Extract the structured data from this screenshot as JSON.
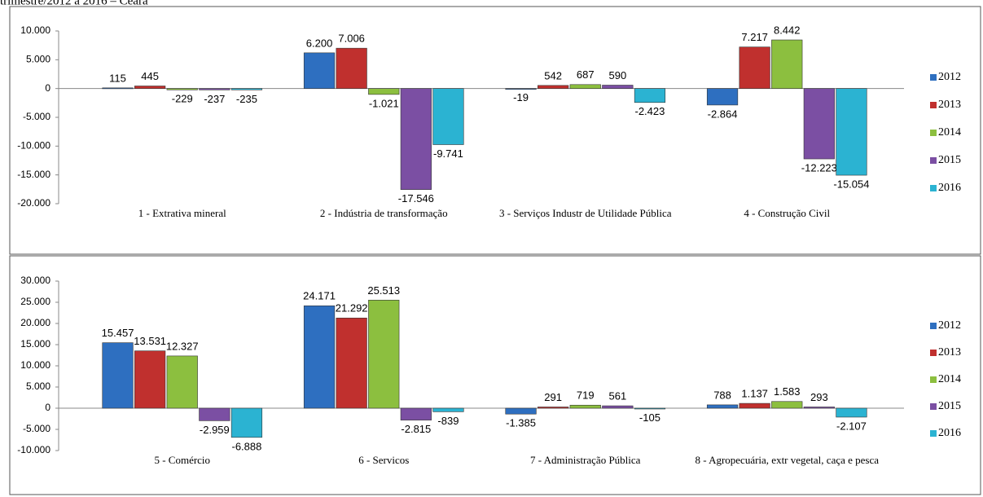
{
  "caption": "trimestre/2012 a 2016 – Ceará",
  "chart_data": [
    {
      "type": "bar",
      "categories": [
        "1 - Extrativa mineral",
        "2 - Indústria de transformação",
        "3 - Serviços Industr de Utilidade Pública",
        "4 - Construção Civil"
      ],
      "series": [
        {
          "name": "2012",
          "color": "#2e6fc0",
          "values": [
            115,
            6200,
            -19,
            -2864
          ],
          "value_labels": [
            "115",
            "6.200",
            "-19",
            "-2.864"
          ]
        },
        {
          "name": "2013",
          "color": "#c0302e",
          "values": [
            445,
            7006,
            542,
            7217
          ],
          "value_labels": [
            "445",
            "7.006",
            "542",
            "7.217"
          ]
        },
        {
          "name": "2014",
          "color": "#8cbf3f",
          "values": [
            -229,
            -1021,
            687,
            8442
          ],
          "value_labels": [
            "-229",
            "-1.021",
            "687",
            "8.442"
          ]
        },
        {
          "name": "2015",
          "color": "#7b4fa3",
          "values": [
            -237,
            -17546,
            590,
            -12223
          ],
          "value_labels": [
            "-237",
            "-17.546",
            "590",
            "-12.223"
          ]
        },
        {
          "name": "2016",
          "color": "#2bb3d2",
          "values": [
            -235,
            -9741,
            -2423,
            -15054
          ],
          "value_labels": [
            "-235",
            "-9.741",
            "-2.423",
            "-15.054"
          ]
        }
      ],
      "ylim": [
        -20000,
        10000
      ],
      "yticks": [
        {
          "value": -20000,
          "label": "-20.000"
        },
        {
          "value": -15000,
          "label": "-15.000"
        },
        {
          "value": -10000,
          "label": "-10.000"
        },
        {
          "value": -5000,
          "label": "-5.000"
        },
        0,
        {
          "value": 5000,
          "label": "5.000"
        },
        {
          "value": 10000,
          "label": "10.000"
        }
      ],
      "legend": "right"
    },
    {
      "type": "bar",
      "categories": [
        "5 - Comércio",
        "6 - Servicos",
        "7 - Administração Pública",
        "8 - Agropecuária, extr vegetal, caça e pesca"
      ],
      "series": [
        {
          "name": "2012",
          "color": "#2e6fc0",
          "values": [
            15457,
            24171,
            -1385,
            788
          ],
          "value_labels": [
            "15.457",
            "24.171",
            "-1.385",
            "788"
          ]
        },
        {
          "name": "2013",
          "color": "#c0302e",
          "values": [
            13531,
            21292,
            291,
            1137
          ],
          "value_labels": [
            "13.531",
            "21.292",
            "291",
            "1.137"
          ]
        },
        {
          "name": "2014",
          "color": "#8cbf3f",
          "values": [
            12327,
            25513,
            719,
            1583
          ],
          "value_labels": [
            "12.327",
            "25.513",
            "719",
            "1.583"
          ]
        },
        {
          "name": "2015",
          "color": "#7b4fa3",
          "values": [
            -2959,
            -2815,
            561,
            293
          ],
          "value_labels": [
            "-2.959",
            "-2.815",
            "561",
            "293"
          ]
        },
        {
          "name": "2016",
          "color": "#2bb3d2",
          "values": [
            -6888,
            -839,
            -105,
            -2107
          ],
          "value_labels": [
            "-6.888",
            "-839",
            "-105",
            "-2.107"
          ]
        }
      ],
      "ylim": [
        -10000,
        30000
      ],
      "yticks": [
        {
          "value": -10000,
          "label": "-10.000"
        },
        {
          "value": -5000,
          "label": "-5.000"
        },
        0,
        {
          "value": 5000,
          "label": "5.000"
        },
        {
          "value": 10000,
          "label": "10.000"
        },
        {
          "value": 15000,
          "label": "15.000"
        },
        {
          "value": 20000,
          "label": "20.000"
        },
        {
          "value": 25000,
          "label": "25.000"
        },
        {
          "value": 30000,
          "label": "30.000"
        }
      ],
      "legend": "right"
    }
  ]
}
